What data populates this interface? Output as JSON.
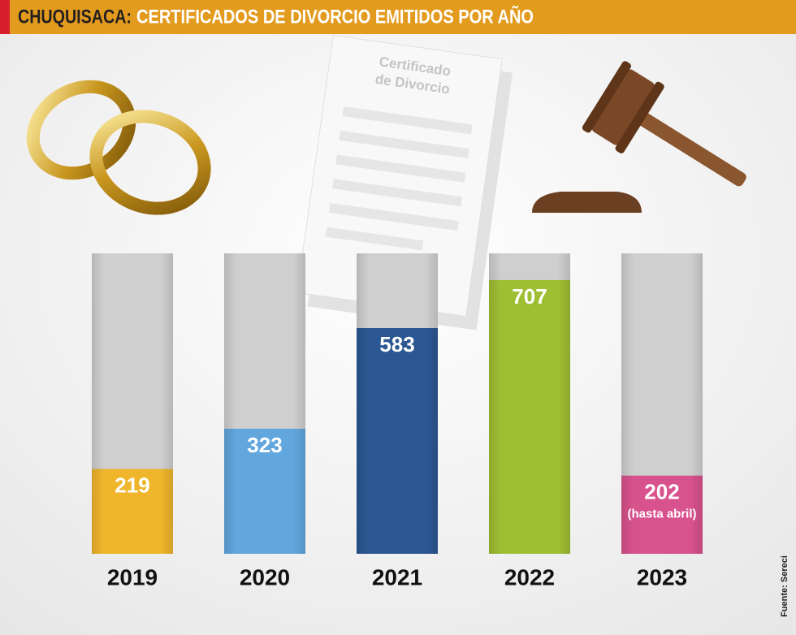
{
  "chart_data": {
    "type": "bar",
    "title_prefix": "CHUQUISACA:",
    "title": "CERTIFICADOS DE DIVORCIO EMITIDOS POR AÑO",
    "categories": [
      "2019",
      "2020",
      "2021",
      "2022",
      "2023"
    ],
    "values": [
      219,
      323,
      583,
      707,
      202
    ],
    "value_notes": [
      null,
      null,
      null,
      null,
      "(hasta abril)"
    ],
    "colors": [
      "#efb62c",
      "#62a6de",
      "#2b5792",
      "#9fbf33",
      "#d8528d"
    ],
    "ylim": [
      0,
      776
    ],
    "source": "Fuente: Sereci",
    "illustration_text": [
      "Certificado",
      "de Divorcio"
    ]
  }
}
